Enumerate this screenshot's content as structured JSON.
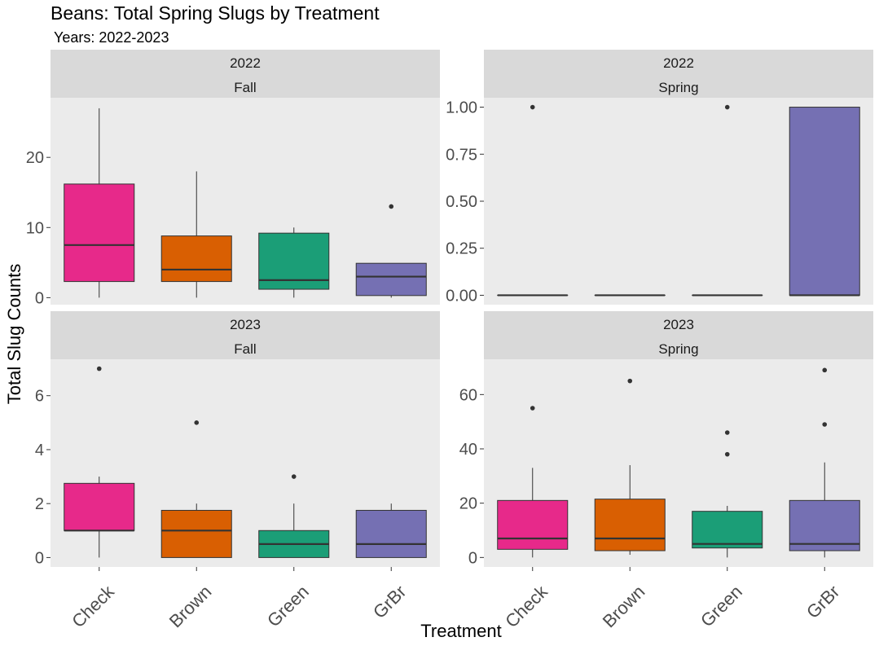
{
  "chart_data": {
    "type": "boxplot",
    "title": "Beans: Total Spring Slugs by Treatment",
    "subtitle": "Years: 2022-2023",
    "xlabel": "Treatment",
    "ylabel": "Total Slug Counts",
    "categories": [
      "Check",
      "Brown",
      "Green",
      "GrBr"
    ],
    "colors": {
      "Check": "#E7298A",
      "Brown": "#D95F02",
      "Green": "#1B9E77",
      "GrBr": "#7570B3",
      "panel_bg": "#EBEBEB",
      "strip_bg": "#D9D9D9"
    },
    "panels": [
      {
        "year": "2022",
        "season": "Fall",
        "ylim": [
          -1,
          28.5
        ],
        "yticks": [
          0,
          10,
          20
        ],
        "ytick_labels": [
          "0",
          "10",
          "20"
        ],
        "boxes": [
          {
            "category": "Check",
            "min": 0,
            "q1": 2.3,
            "median": 7.5,
            "q3": 16.2,
            "max": 27,
            "outliers": []
          },
          {
            "category": "Brown",
            "min": 0,
            "q1": 2.3,
            "median": 4.0,
            "q3": 8.8,
            "max": 18,
            "outliers": []
          },
          {
            "category": "Green",
            "min": 0,
            "q1": 1.2,
            "median": 2.5,
            "q3": 9.2,
            "max": 10,
            "outliers": []
          },
          {
            "category": "GrBr",
            "min": 0,
            "q1": 0.3,
            "median": 3.0,
            "q3": 4.9,
            "max": 4.9,
            "outliers": [
              13
            ]
          }
        ]
      },
      {
        "year": "2022",
        "season": "Spring",
        "ylim": [
          -0.05,
          1.05
        ],
        "yticks": [
          0,
          0.25,
          0.5,
          0.75,
          1.0
        ],
        "ytick_labels": [
          "0.00",
          "0.25",
          "0.50",
          "0.75",
          "1.00"
        ],
        "boxes": [
          {
            "category": "Check",
            "min": 0,
            "q1": 0,
            "median": 0,
            "q3": 0,
            "max": 0,
            "outliers": [
              1
            ]
          },
          {
            "category": "Brown",
            "min": 0,
            "q1": 0,
            "median": 0,
            "q3": 0,
            "max": 0,
            "outliers": []
          },
          {
            "category": "Green",
            "min": 0,
            "q1": 0,
            "median": 0,
            "q3": 0,
            "max": 0,
            "outliers": [
              1
            ]
          },
          {
            "category": "GrBr",
            "min": 0,
            "q1": 0,
            "median": 0,
            "q3": 1,
            "max": 1,
            "outliers": []
          }
        ]
      },
      {
        "year": "2023",
        "season": "Fall",
        "ylim": [
          -0.35,
          7.35
        ],
        "yticks": [
          0,
          2,
          4,
          6
        ],
        "ytick_labels": [
          "0",
          "2",
          "4",
          "6"
        ],
        "boxes": [
          {
            "category": "Check",
            "min": 0,
            "q1": 1.0,
            "median": 1.0,
            "q3": 2.75,
            "max": 3,
            "outliers": [
              7
            ]
          },
          {
            "category": "Brown",
            "min": 0,
            "q1": 0,
            "median": 1.0,
            "q3": 1.75,
            "max": 2,
            "outliers": [
              5
            ]
          },
          {
            "category": "Green",
            "min": 0,
            "q1": 0,
            "median": 0.5,
            "q3": 1.0,
            "max": 2,
            "outliers": [
              3
            ]
          },
          {
            "category": "GrBr",
            "min": 0,
            "q1": 0,
            "median": 0.5,
            "q3": 1.75,
            "max": 2,
            "outliers": []
          }
        ]
      },
      {
        "year": "2023",
        "season": "Spring",
        "ylim": [
          -3.5,
          73
        ],
        "yticks": [
          0,
          20,
          40,
          60
        ],
        "ytick_labels": [
          "0",
          "20",
          "40",
          "60"
        ],
        "boxes": [
          {
            "category": "Check",
            "min": 0,
            "q1": 3.0,
            "median": 7.0,
            "q3": 21.0,
            "max": 33,
            "outliers": [
              55
            ]
          },
          {
            "category": "Brown",
            "min": 1,
            "q1": 2.5,
            "median": 7.0,
            "q3": 21.5,
            "max": 34,
            "outliers": [
              65
            ]
          },
          {
            "category": "Green",
            "min": 0,
            "q1": 3.5,
            "median": 5.0,
            "q3": 17.0,
            "max": 19,
            "outliers": [
              38,
              46
            ]
          },
          {
            "category": "GrBr",
            "min": 0,
            "q1": 2.5,
            "median": 5.0,
            "q3": 21.0,
            "max": 35,
            "outliers": [
              49,
              69
            ]
          }
        ]
      }
    ]
  }
}
